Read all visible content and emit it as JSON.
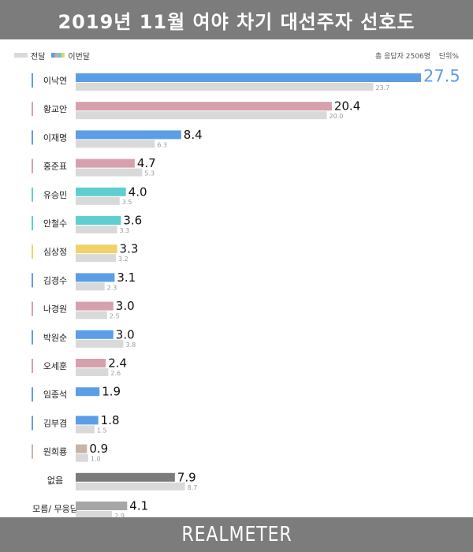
{
  "header": {
    "title": "2019년 11월 여야 차기 대선주자 선호도"
  },
  "legend": {
    "previous_label": "전달",
    "current_label": "이번달"
  },
  "meta": {
    "sample_text": "총 응답자 2506명",
    "unit_text": "단위%"
  },
  "footer": {
    "brand": "REALMETER"
  },
  "colors": {
    "blue": "#5b9ee6",
    "pink": "#d6a0ad",
    "teal": "#5ecfce",
    "yellow": "#efd36a",
    "tan": "#c8b4a6",
    "dark_gray": "#7b7b7b",
    "mid_gray": "#a6a6a6",
    "previous": "#d9d9d9",
    "highlight_value": "#5b9ee6"
  },
  "chart_data": {
    "type": "bar",
    "orientation": "horizontal",
    "title": "2019년 11월 여야 차기 대선주자 선호도",
    "categories": [
      "이낙연",
      "황교안",
      "이재명",
      "홍준표",
      "유승민",
      "안철수",
      "심상정",
      "김경수",
      "나경원",
      "박원순",
      "오세훈",
      "임종석",
      "김부겸",
      "원희룡",
      "없음",
      "모름/ 무응답"
    ],
    "series": [
      {
        "name": "이번달",
        "values": [
          27.5,
          20.4,
          8.4,
          4.7,
          4.0,
          3.6,
          3.3,
          3.1,
          3.0,
          3.0,
          2.4,
          1.9,
          1.8,
          0.9,
          7.9,
          4.1
        ]
      },
      {
        "name": "전달",
        "values": [
          23.7,
          20.0,
          6.3,
          5.3,
          3.5,
          3.3,
          3.2,
          2.3,
          2.5,
          3.8,
          2.6,
          null,
          1.5,
          1.0,
          8.7,
          2.9
        ]
      }
    ],
    "current_value_labels": [
      "27.5",
      "20.4",
      "8.4",
      "4.7",
      "4.0",
      "3.6",
      "3.3",
      "3.1",
      "3.0",
      "3.0",
      "2.4",
      "1.9",
      "1.8",
      "0.9",
      "7.9",
      "4.1"
    ],
    "previous_value_labels": [
      "23.7",
      "20.0",
      "6.3",
      "5.3",
      "3.5",
      "3.3",
      "3.2",
      "2.3",
      "2.5",
      "3.8",
      "2.6",
      "",
      "1.5",
      "1.0",
      "8.7",
      "2.9"
    ],
    "bar_colors": [
      "blue",
      "pink",
      "blue",
      "pink",
      "teal",
      "teal",
      "yellow",
      "blue",
      "pink",
      "blue",
      "pink",
      "blue",
      "blue",
      "tan",
      "dark_gray",
      "mid_gray"
    ],
    "marker_colors": [
      "blue",
      "pink",
      "blue",
      "pink",
      "teal",
      "teal",
      "yellow",
      "blue",
      "pink",
      "blue",
      "pink",
      "blue",
      "blue",
      "tan",
      "",
      ""
    ],
    "xlim": [
      0,
      27.5
    ],
    "grid": false,
    "legend_position": "top-left"
  }
}
